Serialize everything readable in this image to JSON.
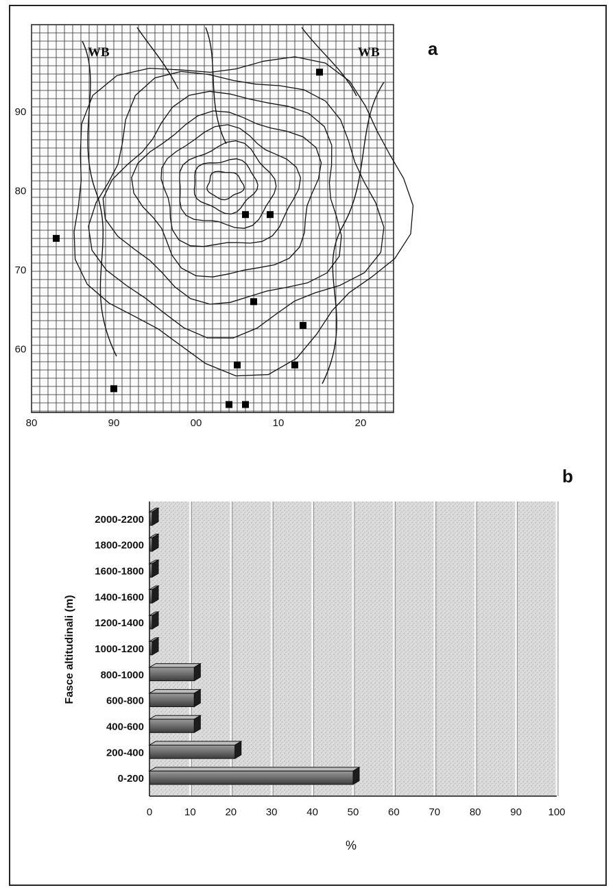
{
  "panel_a": {
    "label": "a",
    "corner_labels": [
      "WB",
      "WB"
    ],
    "x_ticks": [
      "80",
      "90",
      "00",
      "10",
      "20"
    ],
    "y_ticks": [
      "60",
      "70",
      "80",
      "90"
    ]
  },
  "panel_b": {
    "label": "b"
  },
  "chart_data": [
    {
      "type": "scatter",
      "title": "",
      "x_ticks": [
        "80",
        "90",
        "00",
        "10",
        "20"
      ],
      "y_ticks": [
        "60",
        "70",
        "80",
        "90"
      ],
      "xlim": [
        80,
        124
      ],
      "ylim": [
        52,
        101
      ],
      "grid": true,
      "points": [
        {
          "x": 83,
          "y": 74
        },
        {
          "x": 90,
          "y": 55
        },
        {
          "x": 106,
          "y": 77
        },
        {
          "x": 109,
          "y": 77
        },
        {
          "x": 107,
          "y": 66
        },
        {
          "x": 105,
          "y": 58
        },
        {
          "x": 106,
          "y": 53
        },
        {
          "x": 104,
          "y": 53
        },
        {
          "x": 113,
          "y": 63
        },
        {
          "x": 112,
          "y": 58
        },
        {
          "x": 115,
          "y": 95
        }
      ]
    },
    {
      "type": "bar",
      "orientation": "horizontal",
      "ylabel": "Fasce altitudinali (m)",
      "xlabel": "%",
      "categories": [
        "0-200",
        "200-400",
        "400-600",
        "600-800",
        "800-1000",
        "1000-1200",
        "1200-1400",
        "1400-1600",
        "1600-1800",
        "1800-2000",
        "2000-2200"
      ],
      "values": [
        50,
        21,
        11,
        11,
        11,
        0,
        0,
        0,
        0,
        0,
        0
      ],
      "x_ticks": [
        0,
        10,
        20,
        30,
        40,
        50,
        60,
        70,
        80,
        90,
        100
      ],
      "xlim": [
        0,
        100
      ],
      "grid": true
    }
  ]
}
